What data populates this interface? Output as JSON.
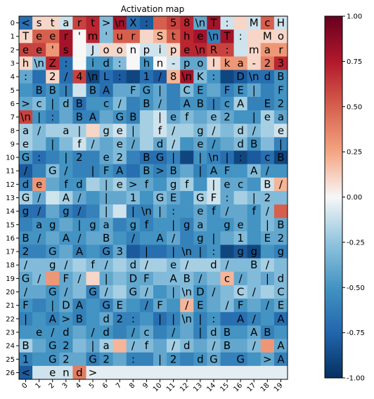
{
  "chart_data": {
    "type": "heatmap",
    "title": "Activation map",
    "xlabel": "",
    "ylabel": "",
    "x_ticks": [
      "0",
      "1",
      "2",
      "3",
      "4",
      "5",
      "6",
      "7",
      "8",
      "9",
      "10",
      "11",
      "12",
      "13",
      "14",
      "15",
      "16",
      "17",
      "18",
      "19"
    ],
    "y_ticks": [
      "0",
      "1",
      "2",
      "3",
      "4",
      "5",
      "6",
      "7",
      "8",
      "9",
      "10",
      "11",
      "12",
      "13",
      "14",
      "15",
      "16",
      "17",
      "18",
      "19",
      "20",
      "21",
      "22",
      "23",
      "24",
      "25",
      "26"
    ],
    "colormap": "RdBu_r",
    "vmin": -1.0,
    "vmax": 1.0,
    "colorbar_ticks": [
      "1.00",
      "0.75",
      "0.50",
      "0.25",
      "0.00",
      "-0.25",
      "-0.50",
      "-0.75",
      "-1.00"
    ],
    "colorbar_tick_values": [
      1.0,
      0.75,
      0.5,
      0.25,
      0.0,
      -0.25,
      -0.5,
      -0.75,
      -1.0
    ],
    "cell_labels": [
      [
        "<",
        "s",
        "t",
        "a",
        "r",
        "t",
        ">",
        "\\n",
        "X",
        ":",
        " ",
        "5",
        "8",
        "\\n",
        "T",
        ":",
        " ",
        "M",
        "c",
        "H"
      ],
      [
        "T",
        "e",
        "e",
        "r",
        "'",
        "m",
        "'",
        "u",
        "r",
        " ",
        "S",
        "t",
        "h",
        "e",
        "\\n",
        "T",
        ":",
        " ",
        "M",
        "o"
      ],
      [
        "e",
        "e",
        "'",
        "s",
        " ",
        "J",
        "o",
        "o",
        "n",
        "p",
        "i",
        "p",
        "e",
        "\\n",
        "R",
        ":",
        " ",
        "m",
        "a",
        "r"
      ],
      [
        "h",
        "\\n",
        "Z",
        ":",
        " ",
        "i",
        "d",
        ":",
        " ",
        "h",
        "n",
        "-",
        "p",
        "o",
        "l",
        "k",
        "a",
        "-",
        "2",
        "3"
      ],
      [
        ":",
        " ",
        "2",
        "/",
        "4",
        "\\n",
        "L",
        ":",
        " ",
        "1",
        "/",
        "8",
        "\\n",
        "K",
        ":",
        " ",
        "D",
        "\\n",
        "d",
        "B"
      ],
      [
        " ",
        "B",
        "B",
        "|",
        " ",
        "B",
        "A",
        " ",
        "F",
        "G",
        "|",
        " ",
        "C",
        "E",
        " ",
        "F",
        "E",
        "|",
        " ",
        "F"
      ],
      [
        ">",
        "c",
        "|",
        "d",
        "B",
        " ",
        "c",
        "/",
        " ",
        "B",
        "/",
        " ",
        "A",
        "B",
        "|",
        "c",
        "A",
        " ",
        "E",
        "2"
      ],
      [
        "\\n",
        "|",
        ":",
        " ",
        "B",
        "A",
        " ",
        "G",
        "B",
        " ",
        "|",
        "e",
        "f",
        " ",
        "e",
        "2",
        " ",
        "|",
        "e",
        "a"
      ],
      [
        "a",
        "/",
        " ",
        "a",
        "|",
        " ",
        "g",
        "e",
        "|",
        " ",
        "f",
        "/",
        " ",
        "g",
        "/",
        " ",
        "d",
        "/",
        " ",
        "e"
      ],
      [
        "e",
        " ",
        "|",
        " ",
        "f",
        "/",
        " ",
        "e",
        "/",
        " ",
        "d",
        "/",
        " ",
        "e",
        "/",
        " ",
        "d",
        "B",
        " ",
        "|"
      ],
      [
        "G",
        ":",
        " ",
        "|",
        "2",
        " ",
        "e",
        "2",
        " ",
        "B",
        "G",
        "|",
        " ",
        "|",
        "\\n",
        "|",
        ":",
        " ",
        "c",
        "B"
      ],
      [
        "/",
        " ",
        "G",
        "/",
        " ",
        "|",
        "F",
        "A",
        " ",
        "B",
        ">",
        "B",
        " ",
        "|",
        "A",
        "F",
        " ",
        "A",
        "/",
        " ",
        "B"
      ],
      [
        "d",
        "e",
        " ",
        "f",
        "d",
        " ",
        "|",
        "e",
        ">",
        "f",
        " ",
        "g",
        "f",
        " ",
        "|",
        "e",
        "c",
        " ",
        "B",
        "/"
      ],
      [
        "G",
        "/",
        " ",
        "A",
        "/",
        " ",
        "|",
        " ",
        "1",
        " ",
        "G",
        "E",
        " ",
        "G",
        "F",
        ":",
        " ",
        "|",
        "2",
        " "
      ],
      [
        "g",
        "/",
        " ",
        "g",
        "/",
        " ",
        "|",
        " ",
        "|",
        "\\n",
        "|",
        ":",
        " ",
        "e",
        "f",
        "/",
        " ",
        "f",
        "/",
        " "
      ],
      [
        " ",
        "a",
        "g",
        " ",
        "|",
        "g",
        "a",
        " ",
        "g",
        "f",
        " ",
        "|",
        "g",
        "a",
        " ",
        "g",
        "e",
        " ",
        "|",
        "B"
      ],
      [
        "B",
        "/",
        " ",
        "A",
        "/",
        " ",
        "B",
        " ",
        "/",
        " ",
        "A",
        "/",
        " ",
        "g",
        "|",
        " ",
        "1",
        " ",
        "E",
        "2"
      ],
      [
        "2",
        " ",
        "G",
        " ",
        "A",
        " ",
        "G",
        "3",
        " ",
        "|",
        " ",
        "|",
        "\\n",
        "|",
        ":",
        " ",
        "g",
        "g",
        " ",
        "g"
      ],
      [
        "/",
        " ",
        "g",
        "/",
        " ",
        "f",
        "/",
        " ",
        "d",
        "/",
        " ",
        "e",
        "/",
        " ",
        "d",
        "/",
        " ",
        "B",
        "/",
        " "
      ],
      [
        "G",
        "/",
        " ",
        "F",
        "/",
        " ",
        "|",
        " ",
        "D",
        "F",
        " ",
        "A",
        "B",
        "/",
        " ",
        "c",
        "/",
        " ",
        "|",
        "d"
      ],
      [
        "/",
        " ",
        "G",
        "/",
        " ",
        "G",
        "/",
        " ",
        "G",
        "/",
        " ",
        "|",
        "\\n",
        "D",
        "/",
        " ",
        "C",
        "/",
        " ",
        "C"
      ],
      [
        "F",
        " ",
        "|",
        "D",
        "A",
        " ",
        "G",
        "E",
        " ",
        "/",
        "F",
        " ",
        "/",
        "E",
        " ",
        "/",
        "F",
        " ",
        "/",
        "E"
      ],
      [
        "|",
        " ",
        "A",
        ">",
        "B",
        " ",
        "d",
        "2",
        ":",
        " ",
        "|",
        "|",
        "\\n",
        "|",
        ":",
        " ",
        "A",
        "/",
        " ",
        "A"
      ],
      [
        " ",
        "e",
        "/",
        "d",
        " ",
        "/",
        "d",
        " ",
        "/",
        "c",
        " ",
        "/",
        " ",
        "|",
        "d",
        "B",
        " ",
        "A",
        "B",
        " "
      ],
      [
        "B",
        " ",
        "G",
        "2",
        " ",
        "|",
        "a",
        " ",
        "/",
        "f",
        " ",
        "/",
        "d",
        " ",
        "/",
        "B",
        " ",
        "/",
        " ",
        "A"
      ],
      [
        "1",
        " ",
        "G",
        "2",
        " ",
        "G",
        "2",
        " ",
        ":",
        " ",
        "|",
        "2",
        " ",
        "d",
        "G",
        " ",
        "G",
        " ",
        ">",
        "A"
      ],
      [
        "<",
        " ",
        "e",
        "n",
        "d",
        ">",
        "",
        "",
        "",
        "",
        "",
        "",
        "",
        "",
        "",
        "",
        "",
        "",
        "",
        ""
      ]
    ],
    "values": [
      [
        -0.7,
        0.1,
        0.1,
        -0.1,
        0.6,
        0.7,
        -0.3,
        0.8,
        -0.7,
        -0.8,
        0.5,
        0.6,
        0.7,
        -0.4,
        0.8,
        -0.1,
        0.1,
        -0.1,
        0.5,
        -0.1
      ],
      [
        0.1,
        0.5,
        0.5,
        0.8,
        0.0,
        0.7,
        -0.3,
        0.5,
        0.5,
        0.1,
        0.2,
        0.5,
        0.7,
        0.8,
        -0.6,
        0.8,
        -0.1,
        0.1,
        0.1,
        0.1
      ],
      [
        0.6,
        0.6,
        0.3,
        0.8,
        0.0,
        -0.1,
        0.1,
        0.1,
        0.0,
        -0.1,
        -0.1,
        0.1,
        0.7,
        0.7,
        0.6,
        0.6,
        -0.1,
        0.1,
        0.3,
        0.3
      ],
      [
        0.1,
        -0.3,
        0.7,
        -0.7,
        0.0,
        -0.5,
        -0.5,
        -0.3,
        0.0,
        -0.5,
        0.0,
        -0.1,
        -0.4,
        -0.4,
        0.1,
        0.3,
        0.3,
        0.1,
        0.4,
        0.7
      ],
      [
        -0.4,
        -0.7,
        0.1,
        -0.7,
        0.6,
        -0.9,
        -0.7,
        -0.8,
        -0.9,
        -0.7,
        -0.8,
        0.2,
        0.8,
        -0.3,
        -0.5,
        -0.9,
        -0.8,
        -0.7,
        -0.7,
        -0.5
      ],
      [
        -0.5,
        -0.6,
        -0.5,
        -0.6,
        -0.1,
        -0.6,
        -0.7,
        -0.4,
        -0.4,
        -0.5,
        -0.4,
        -0.6,
        -0.3,
        -0.5,
        -0.4,
        -0.6,
        -0.5,
        -0.4,
        -0.6,
        -0.5
      ],
      [
        -0.4,
        -0.3,
        -0.5,
        -0.4,
        -0.7,
        -0.5,
        -0.5,
        -0.3,
        -0.6,
        -0.5,
        -0.4,
        -0.6,
        -0.5,
        -0.5,
        -0.6,
        -0.5,
        -0.2,
        -0.6,
        -0.6,
        -0.5
      ],
      [
        0.6,
        -0.5,
        -0.6,
        -0.4,
        -0.6,
        -0.6,
        -0.4,
        -0.5,
        -0.6,
        -0.2,
        -0.1,
        -0.4,
        -0.3,
        -0.4,
        -0.3,
        -0.4,
        -0.5,
        -0.5,
        -0.2,
        -0.4
      ],
      [
        -0.2,
        -0.3,
        -0.2,
        -0.2,
        -0.2,
        0.1,
        -0.2,
        -0.1,
        -0.3,
        -0.2,
        -0.1,
        -0.2,
        -0.2,
        -0.3,
        -0.2,
        -0.3,
        -0.2,
        -0.3,
        -0.2,
        -0.1
      ],
      [
        -0.2,
        -0.3,
        -0.5,
        -0.3,
        -0.1,
        -0.3,
        -0.4,
        -0.3,
        -0.4,
        -0.2,
        -0.4,
        -0.2,
        -0.5,
        -0.4,
        -0.5,
        -0.4,
        -0.3,
        -0.5,
        -0.3,
        -0.6
      ],
      [
        -0.5,
        -0.7,
        -0.6,
        -0.5,
        -0.6,
        -0.6,
        -0.4,
        -0.3,
        -0.6,
        -0.7,
        -0.7,
        -0.6,
        -0.9,
        -0.5,
        -0.6,
        -0.7,
        -0.9,
        -0.8,
        -0.7,
        -0.9
      ],
      [
        -0.8,
        -0.6,
        -0.3,
        -0.5,
        -0.6,
        -0.6,
        -0.5,
        -0.6,
        -0.7,
        -0.5,
        -0.6,
        -0.5,
        -0.4,
        -0.6,
        -0.5,
        -0.5,
        -0.5,
        -0.3,
        -0.5,
        -0.5
      ],
      [
        -0.6,
        0.3,
        -0.4,
        -0.5,
        -0.5,
        -0.2,
        -0.3,
        -0.2,
        -0.4,
        -0.4,
        -0.5,
        -0.3,
        -0.2,
        -0.5,
        -0.1,
        -0.4,
        -0.4,
        -0.5,
        -0.1,
        0.2
      ],
      [
        -0.2,
        -0.4,
        -0.1,
        -0.2,
        -0.4,
        -0.5,
        -0.4,
        -0.4,
        -0.3,
        -0.5,
        -0.3,
        -0.4,
        -0.5,
        -0.2,
        -0.1,
        -0.4,
        -0.2,
        -0.3,
        -0.3,
        -0.3
      ],
      [
        -0.7,
        -0.7,
        -0.4,
        -0.6,
        -0.7,
        -0.6,
        -0.3,
        -0.1,
        -0.6,
        -0.6,
        -0.4,
        -0.5,
        -0.5,
        -0.4,
        -0.5,
        -0.4,
        -0.4,
        -0.5,
        -0.3,
        0.5
      ],
      [
        -0.6,
        -0.5,
        -0.5,
        -0.4,
        -0.5,
        -0.5,
        -0.4,
        -0.6,
        -0.5,
        -0.6,
        -0.5,
        -0.5,
        -0.6,
        -0.4,
        -0.5,
        -0.5,
        -0.4,
        -0.5,
        -0.3,
        -0.4
      ],
      [
        -0.5,
        -0.5,
        -0.4,
        -0.5,
        -0.5,
        -0.4,
        -0.4,
        -0.5,
        -0.6,
        -0.5,
        -0.5,
        -0.4,
        -0.6,
        -0.5,
        -0.5,
        -0.4,
        -0.3,
        -0.5,
        -0.4,
        -0.4
      ],
      [
        -0.6,
        -0.6,
        -0.5,
        -0.4,
        -0.6,
        -0.5,
        -0.6,
        -0.4,
        -0.8,
        -0.7,
        -0.7,
        -0.6,
        -0.6,
        -0.6,
        -0.5,
        -0.9,
        -0.8,
        -0.9,
        -0.5,
        -0.6
      ],
      [
        -0.3,
        -0.3,
        -0.3,
        -0.3,
        -0.2,
        -0.3,
        -0.3,
        -0.2,
        -0.3,
        -0.2,
        -0.2,
        -0.3,
        -0.2,
        -0.2,
        -0.2,
        -0.3,
        -0.3,
        -0.3,
        -0.2,
        -0.3
      ],
      [
        -0.4,
        -0.3,
        0.3,
        -0.4,
        -0.3,
        0.1,
        -0.4,
        -0.3,
        -0.4,
        -0.4,
        -0.3,
        -0.3,
        -0.3,
        -0.4,
        -0.3,
        0.2,
        -0.4,
        -0.3,
        -0.4,
        -0.3
      ],
      [
        -0.4,
        -0.4,
        -0.5,
        -0.4,
        -0.3,
        -0.6,
        -0.3,
        -0.2,
        -0.4,
        -0.3,
        -0.5,
        -0.4,
        -0.3,
        -0.5,
        -0.4,
        -0.3,
        -0.2,
        -0.3,
        -0.2,
        -0.3
      ],
      [
        -0.5,
        -0.6,
        -0.5,
        -0.4,
        -0.6,
        -0.5,
        -0.6,
        -0.4,
        -0.5,
        -0.6,
        -0.4,
        -0.5,
        0.2,
        -0.5,
        -0.4,
        -0.3,
        -0.5,
        -0.4,
        -0.5,
        -0.4
      ],
      [
        -0.6,
        -0.5,
        -0.6,
        -0.5,
        -0.6,
        -0.5,
        -0.4,
        -0.6,
        -0.6,
        -0.5,
        -0.7,
        -0.6,
        -0.4,
        -0.6,
        -0.5,
        -0.7,
        -0.7,
        -0.6,
        -0.5,
        -0.7
      ],
      [
        -0.5,
        -0.5,
        -0.5,
        -0.5,
        -0.4,
        -0.5,
        -0.5,
        -0.6,
        -0.5,
        -0.4,
        -0.6,
        -0.5,
        -0.4,
        -0.6,
        -0.4,
        -0.5,
        -0.5,
        -0.4,
        -0.6,
        -0.5
      ],
      [
        -0.2,
        -0.4,
        -0.5,
        -0.5,
        -0.3,
        -0.4,
        -0.2,
        0.2,
        -0.3,
        -0.3,
        -0.4,
        -0.2,
        -0.3,
        -0.4,
        -0.3,
        -0.4,
        -0.4,
        -0.3,
        0.3,
        -0.4
      ],
      [
        -0.6,
        -0.5,
        -0.5,
        -0.4,
        -0.4,
        -0.6,
        -0.5,
        -0.4,
        -0.6,
        -0.6,
        -0.4,
        -0.5,
        -0.6,
        -0.5,
        -0.4,
        -0.6,
        -0.6,
        -0.5,
        -0.4,
        -0.6
      ],
      [
        -0.8,
        -0.1,
        -0.1,
        -0.1,
        0.4,
        -0.05,
        -0.05,
        -0.05,
        -0.05,
        -0.05,
        -0.05,
        -0.05,
        -0.05,
        -0.05,
        -0.05,
        -0.05,
        -0.05,
        -0.05,
        -0.05,
        -0.05
      ]
    ]
  }
}
